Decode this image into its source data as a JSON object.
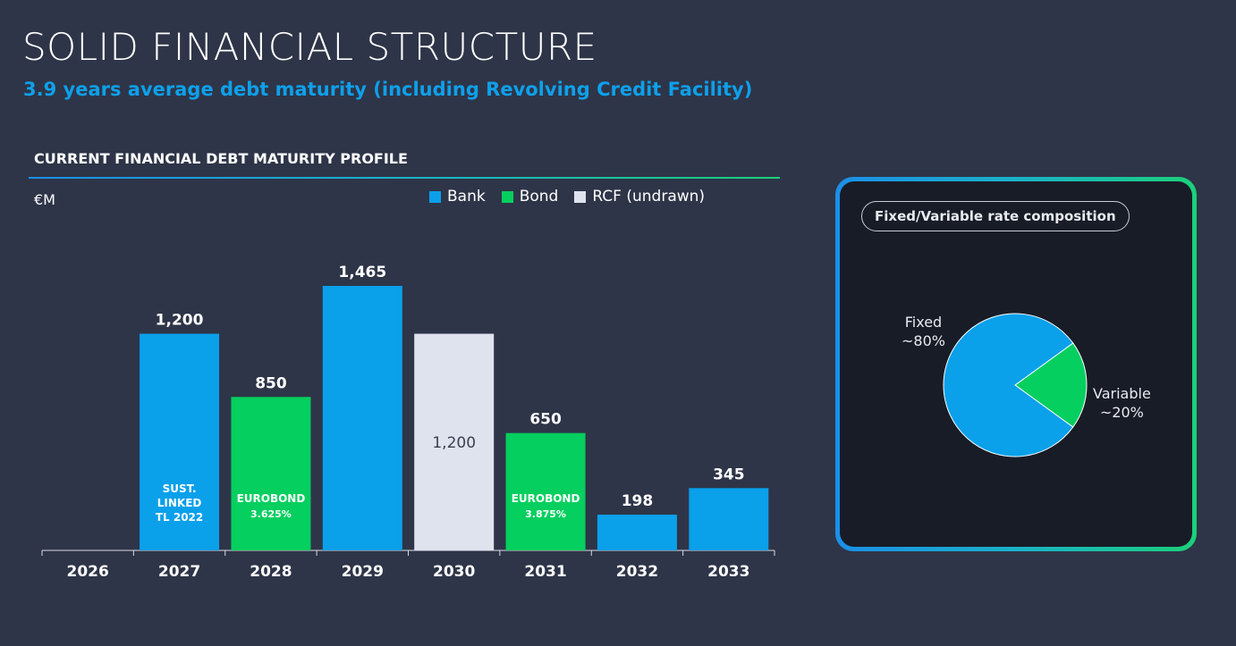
{
  "header": {
    "title": "SOLID FINANCIAL STRUCTURE",
    "subtitle": "3.9 years average debt maturity (including Revolving Credit Facility)"
  },
  "colors": {
    "bank": "#0aa0ea",
    "bond": "#05cf5f",
    "rcf": "#dfe3ee",
    "background": "#2e3548",
    "panel": "#181c27"
  },
  "chart_data": [
    {
      "type": "bar",
      "title": "CURRENT FINANCIAL DEBT MATURITY PROFILE",
      "unit": "€M",
      "categories": [
        "2026",
        "2027",
        "2028",
        "2029",
        "2030",
        "2031",
        "2032",
        "2033"
      ],
      "legend": [
        {
          "name": "Bank",
          "color_key": "bank"
        },
        {
          "name": "Bond",
          "color_key": "bond"
        },
        {
          "name": "RCF (undrawn)",
          "color_key": "rcf"
        }
      ],
      "legend_placement": "top-right",
      "ylim": [
        0,
        1465
      ],
      "bars": [
        {
          "category": "2027",
          "value": 1200,
          "value_label": "1,200",
          "series": "Bank",
          "inner_label": [
            "SUST.",
            "LINKED",
            "TL 2022"
          ]
        },
        {
          "category": "2028",
          "value": 850,
          "value_label": "850",
          "series": "Bond",
          "inner_label": [
            "EUROBOND",
            "3.625%"
          ]
        },
        {
          "category": "2029",
          "value": 1465,
          "value_label": "1,465",
          "series": "Bank",
          "inner_label": []
        },
        {
          "category": "2030",
          "value": 1200,
          "value_label": "1,200",
          "series": "RCF (undrawn)",
          "inner_label": [],
          "label_inside": true
        },
        {
          "category": "2031",
          "value": 650,
          "value_label": "650",
          "series": "Bond",
          "inner_label": [
            "EUROBOND",
            "3.875%"
          ]
        },
        {
          "category": "2032",
          "value": 198,
          "value_label": "198",
          "series": "Bank",
          "inner_label": []
        },
        {
          "category": "2033",
          "value": 345,
          "value_label": "345",
          "series": "Bank",
          "inner_label": []
        }
      ]
    },
    {
      "type": "pie",
      "title": "Fixed/Variable rate composition",
      "slices": [
        {
          "name": "Fixed",
          "value_label": "~80%",
          "value": 80,
          "color_key": "bank"
        },
        {
          "name": "Variable",
          "value_label": "~20%",
          "value": 20,
          "color_key": "bond"
        }
      ]
    }
  ]
}
